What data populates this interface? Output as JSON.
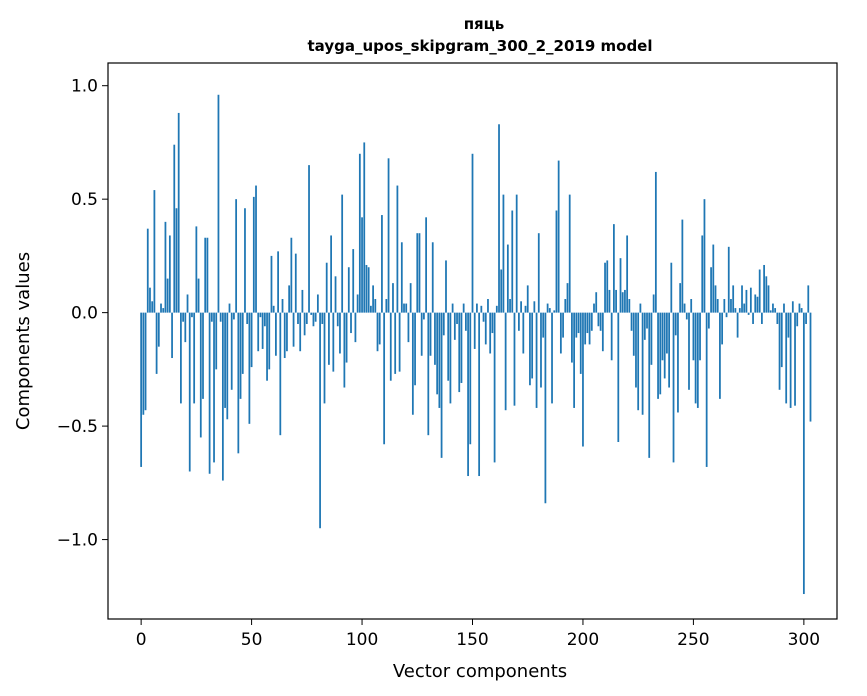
{
  "chart_data": {
    "type": "bar",
    "title_line1": "пяць",
    "title_line2": "tayga_upos_skipgram_300_2_2019 model",
    "xlabel": "Vector components",
    "ylabel": "Components values",
    "xlim": [
      -15,
      315
    ],
    "ylim": [
      -1.35,
      1.1
    ],
    "xticks": [
      0,
      50,
      100,
      150,
      200,
      250,
      300
    ],
    "xtick_labels": [
      "0",
      "50",
      "100",
      "150",
      "200",
      "250",
      "300"
    ],
    "yticks": [
      1.0,
      0.5,
      0.0,
      -0.5,
      -1.0
    ],
    "ytick_labels": [
      "1.0",
      "0.5",
      "0.0",
      "−0.5",
      "−1.0"
    ],
    "bar_color": "#1f77b4",
    "values": [
      -0.68,
      -0.45,
      -0.43,
      0.37,
      0.11,
      0.05,
      0.54,
      -0.27,
      -0.15,
      0.04,
      0.02,
      0.4,
      0.15,
      0.34,
      -0.2,
      0.74,
      0.46,
      0.88,
      -0.4,
      -0.04,
      -0.13,
      0.08,
      -0.7,
      -0.02,
      -0.4,
      0.38,
      0.15,
      -0.55,
      -0.38,
      0.33,
      0.33,
      -0.71,
      -0.04,
      -0.66,
      -0.25,
      0.96,
      -0.04,
      -0.74,
      -0.42,
      -0.47,
      0.04,
      -0.34,
      -0.03,
      0.5,
      -0.62,
      -0.38,
      -0.27,
      0.46,
      -0.05,
      -0.49,
      -0.24,
      0.51,
      0.56,
      -0.17,
      -0.02,
      -0.16,
      -0.06,
      -0.3,
      -0.25,
      0.25,
      0.03,
      -0.19,
      0.27,
      -0.54,
      0.06,
      -0.2,
      -0.17,
      0.12,
      0.33,
      -0.15,
      0.26,
      -0.05,
      -0.17,
      0.1,
      -0.1,
      -0.05,
      0.65,
      -0.01,
      -0.06,
      -0.04,
      0.08,
      -0.95,
      -0.05,
      -0.4,
      0.22,
      -0.23,
      0.34,
      -0.26,
      0.16,
      -0.06,
      -0.18,
      0.52,
      -0.33,
      -0.22,
      0.2,
      -0.09,
      0.28,
      -0.13,
      0.08,
      0.7,
      0.42,
      0.75,
      0.21,
      0.2,
      0.03,
      0.12,
      0.06,
      -0.17,
      -0.14,
      0.43,
      -0.58,
      0.06,
      0.68,
      -0.3,
      0.13,
      -0.27,
      0.56,
      -0.26,
      0.31,
      0.04,
      0.04,
      -0.13,
      0.13,
      -0.45,
      -0.32,
      0.35,
      0.35,
      -0.19,
      -0.03,
      0.42,
      -0.54,
      -0.19,
      0.31,
      -0.23,
      -0.36,
      -0.42,
      -0.64,
      -0.1,
      0.23,
      -0.3,
      -0.4,
      0.04,
      -0.12,
      -0.05,
      -0.35,
      -0.31,
      0.04,
      -0.08,
      -0.72,
      -0.58,
      0.7,
      -0.16,
      0.04,
      -0.72,
      0.03,
      -0.04,
      -0.14,
      0.06,
      -0.18,
      -0.09,
      -0.66,
      0.03,
      0.83,
      0.19,
      0.52,
      -0.43,
      0.3,
      0.06,
      0.45,
      -0.41,
      0.52,
      -0.08,
      0.05,
      -0.18,
      0.03,
      0.12,
      -0.32,
      -0.29,
      0.05,
      -0.42,
      0.35,
      -0.33,
      -0.11,
      -0.84,
      0.04,
      0.02,
      -0.4,
      0.01,
      0.45,
      0.67,
      -0.18,
      -0.11,
      0.06,
      0.13,
      0.52,
      -0.22,
      -0.42,
      -0.11,
      -0.09,
      -0.27,
      -0.59,
      -0.14,
      -0.09,
      -0.14,
      -0.08,
      0.04,
      0.09,
      -0.06,
      -0.08,
      -0.17,
      0.22,
      0.23,
      0.1,
      -0.21,
      0.39,
      0.1,
      -0.57,
      0.24,
      0.09,
      0.1,
      0.34,
      0.06,
      -0.08,
      -0.19,
      -0.33,
      -0.43,
      0.04,
      -0.45,
      -0.12,
      -0.07,
      -0.64,
      -0.23,
      0.08,
      0.62,
      -0.38,
      -0.36,
      -0.21,
      -0.29,
      -0.18,
      -0.33,
      0.22,
      -0.66,
      -0.1,
      -0.44,
      0.13,
      0.41,
      0.04,
      -0.03,
      -0.34,
      0.06,
      -0.21,
      -0.4,
      -0.42,
      -0.21,
      0.34,
      0.5,
      -0.68,
      -0.07,
      0.2,
      0.3,
      0.12,
      0.06,
      -0.38,
      -0.14,
      0.06,
      -0.02,
      0.29,
      0.06,
      0.12,
      0.02,
      -0.11,
      0.02,
      0.12,
      0.04,
      0.1,
      -0.01,
      0.11,
      -0.05,
      0.08,
      0.07,
      0.19,
      -0.05,
      0.21,
      0.16,
      0.12,
      0.01,
      0.04,
      0.02,
      -0.05,
      -0.34,
      -0.24,
      0.04,
      -0.4,
      -0.11,
      -0.42,
      0.05,
      -0.41,
      -0.06,
      0.04,
      0.02,
      -1.24,
      -0.05,
      0.12,
      -0.48
    ]
  }
}
